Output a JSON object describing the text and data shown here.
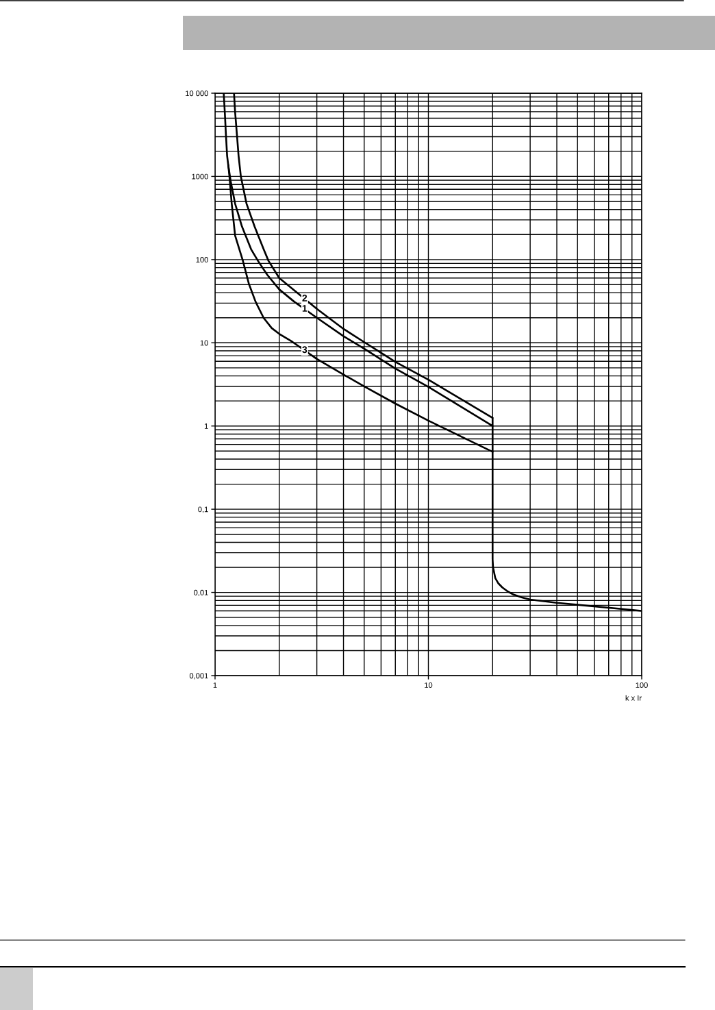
{
  "chart_data": {
    "type": "line",
    "xlabel": "k x Ir",
    "log": "xy",
    "xlim": [
      1,
      100
    ],
    "ylim": [
      0.001,
      10000
    ],
    "xticks": [
      1,
      10,
      100
    ],
    "yticks": [
      {
        "value": 0.001,
        "label": "0,001"
      },
      {
        "value": 0.01,
        "label": "0,01"
      },
      {
        "value": 0.1,
        "label": "0,1"
      },
      1,
      10,
      100,
      1000,
      {
        "value": 10000,
        "label": "10 000"
      }
    ],
    "grid": true,
    "line_style": "solid",
    "series": [
      {
        "name": "1",
        "color": "#000000",
        "x": [
          1.153,
          1.183,
          1.242,
          1.337,
          1.476,
          1.589,
          1.754,
          2,
          2.357,
          3,
          4,
          5,
          7,
          10,
          20
        ],
        "values": [
          1374,
          884,
          469,
          250,
          133,
          96.7,
          66,
          43.8,
          31,
          20,
          12,
          8.5,
          4.9,
          2.95,
          1.0
        ]
      },
      {
        "name": "2",
        "color": "#000000",
        "x": [
          1.227,
          1.242,
          1.267,
          1.289,
          1.321,
          1.405,
          1.532,
          1.69,
          1.78,
          2,
          2.357,
          3,
          4,
          5,
          7,
          10,
          20
        ],
        "values": [
          10000,
          5890,
          3126,
          1770,
          1000,
          469,
          250,
          133,
          96.7,
          60,
          42.5,
          25.6,
          14.7,
          10.2,
          5.9,
          3.6,
          1.25
        ]
      },
      {
        "name": "3",
        "color": "#000000",
        "x": [
          1.098,
          1.111,
          1.125,
          1.139,
          1.153,
          1.168,
          1.197,
          1.242,
          1.35,
          1.44,
          1.55,
          1.69,
          1.844,
          2,
          2.3,
          3,
          4,
          5,
          7,
          10,
          20
        ],
        "values": [
          10000,
          5890,
          3126,
          1770,
          1374,
          1000,
          469,
          194,
          97,
          51.4,
          31,
          19.9,
          15,
          12.8,
          10.3,
          6.4,
          4.15,
          3.0,
          1.86,
          1.16,
          0.49
        ]
      },
      {
        "color": "#000000",
        "x": [
          20,
          20,
          20.1,
          20.6,
          21.3,
          22.2,
          23.5,
          25.1,
          27.5,
          30,
          40,
          50,
          100
        ],
        "values": [
          1.25,
          0.025,
          0.02,
          0.0148,
          0.0128,
          0.0115,
          0.0103,
          0.0094,
          0.0087,
          0.0082,
          0.0075,
          0.0071,
          0.006
        ]
      }
    ]
  }
}
